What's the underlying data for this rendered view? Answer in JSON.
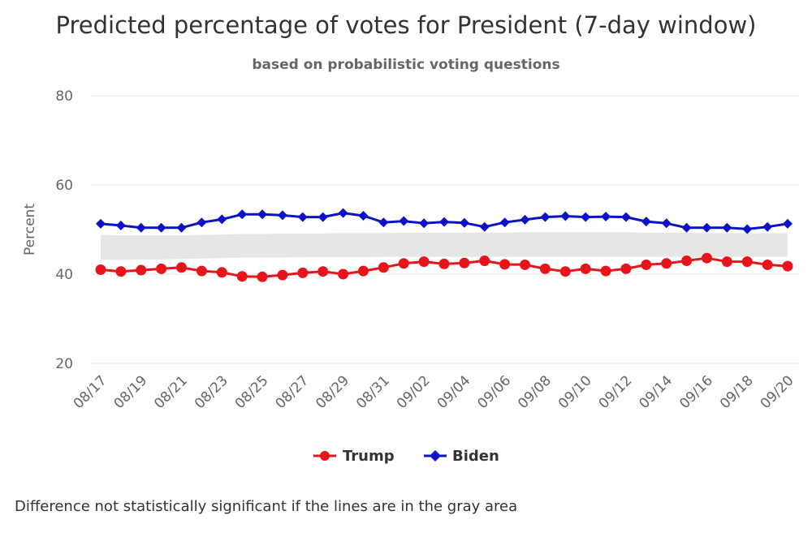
{
  "chart_data": {
    "type": "line",
    "title": "Predicted percentage of votes for President (7-day window)",
    "subtitle": "based on probabilistic voting questions",
    "ylabel": "Percent",
    "xlabel": "",
    "ylim": [
      20,
      80
    ],
    "yticks": [
      20,
      40,
      60,
      80
    ],
    "grid": true,
    "legend_position": "bottom-center",
    "x": [
      "08/17",
      "08/18",
      "08/19",
      "08/20",
      "08/21",
      "08/22",
      "08/23",
      "08/24",
      "08/25",
      "08/26",
      "08/27",
      "08/28",
      "08/29",
      "08/30",
      "08/31",
      "09/01",
      "09/02",
      "09/03",
      "09/04",
      "09/05",
      "09/06",
      "09/07",
      "09/08",
      "09/09",
      "09/10",
      "09/11",
      "09/12",
      "09/13",
      "09/14",
      "09/15",
      "09/16",
      "09/17",
      "09/18",
      "09/19",
      "09/20"
    ],
    "xtick_labels": [
      "08/17",
      "08/19",
      "08/21",
      "08/23",
      "08/25",
      "08/27",
      "08/29",
      "08/31",
      "09/02",
      "09/04",
      "09/06",
      "09/08",
      "09/10",
      "09/12",
      "09/14",
      "09/16",
      "09/18",
      "09/20"
    ],
    "series": [
      {
        "name": "Trump",
        "color": "#e8141c",
        "marker": "circle",
        "values": [
          41.0,
          40.6,
          40.9,
          41.2,
          41.5,
          40.7,
          40.4,
          39.5,
          39.4,
          39.8,
          40.3,
          40.6,
          40.0,
          40.7,
          41.5,
          42.4,
          42.8,
          42.3,
          42.5,
          43.0,
          42.2,
          42.1,
          41.2,
          40.6,
          41.2,
          40.7,
          41.2,
          42.1,
          42.4,
          43.0,
          43.6,
          42.8,
          42.8,
          42.1,
          41.8
        ]
      },
      {
        "name": "Biden",
        "color": "#0c12c8",
        "marker": "diamond",
        "values": [
          51.3,
          50.9,
          50.4,
          50.4,
          50.4,
          51.6,
          52.3,
          53.4,
          53.4,
          53.2,
          52.8,
          52.8,
          53.7,
          53.1,
          51.6,
          51.9,
          51.4,
          51.7,
          51.5,
          50.6,
          51.6,
          52.2,
          52.8,
          53.0,
          52.8,
          52.9,
          52.8,
          51.8,
          51.4,
          50.4,
          50.4,
          50.4,
          50.1,
          50.6,
          51.3
        ]
      }
    ],
    "band": {
      "label": "Difference not statistically significant",
      "color": "#e6e6e6",
      "lower": [
        43.2,
        43.2,
        43.3,
        43.3,
        43.4,
        43.5,
        43.6,
        43.7,
        43.7,
        43.7,
        43.8,
        43.8,
        43.8,
        43.8,
        43.9,
        43.9,
        43.9,
        43.9,
        43.9,
        43.9,
        43.9,
        43.9,
        43.9,
        43.9,
        43.9,
        43.9,
        43.9,
        43.9,
        43.9,
        43.9,
        43.9,
        43.9,
        43.9,
        43.9,
        43.9
      ],
      "upper": [
        48.8,
        48.7,
        48.7,
        48.7,
        48.7,
        48.8,
        48.9,
        49.0,
        49.0,
        49.1,
        49.1,
        49.1,
        49.2,
        49.2,
        49.2,
        49.3,
        49.3,
        49.3,
        49.3,
        49.3,
        49.3,
        49.4,
        49.4,
        49.4,
        49.4,
        49.4,
        49.4,
        49.3,
        49.3,
        49.3,
        49.2,
        49.2,
        49.2,
        49.2,
        49.2
      ]
    }
  },
  "footnote": "Difference not statistically significant if the lines are in the gray area"
}
